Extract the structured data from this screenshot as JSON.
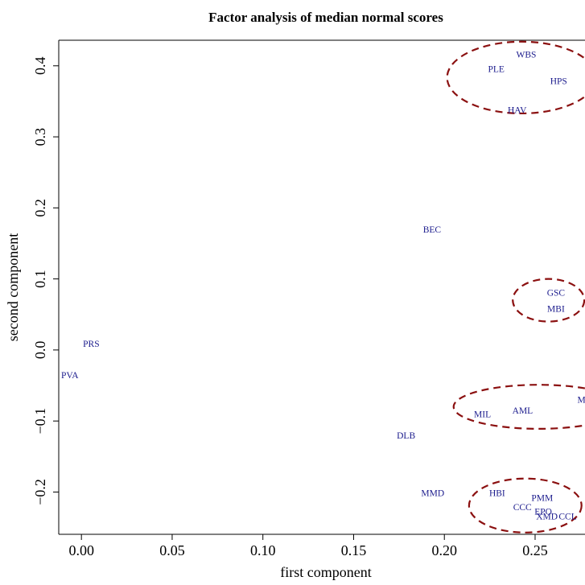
{
  "chart_data": {
    "type": "scatter",
    "title": "Factor analysis of median normal scores",
    "xlabel": "first component",
    "ylabel": "second component",
    "xlim": [
      -0.0125,
      0.2775
    ],
    "ylim": [
      -0.2595,
      0.436
    ],
    "xticks": [
      0.0,
      0.05,
      0.1,
      0.15,
      0.2,
      0.25
    ],
    "xtick_labels": [
      "0.00",
      "0.05",
      "0.10",
      "0.15",
      "0.20",
      "0.25"
    ],
    "yticks": [
      -0.2,
      -0.1,
      0.0,
      0.1,
      0.2,
      0.3,
      0.4
    ],
    "ytick_labels": [
      "−0.2",
      "−0.1",
      "0.0",
      "0.1",
      "0.2",
      "0.3",
      "0.4"
    ],
    "grid": false,
    "point_color": "#1a1a8c",
    "ellipse_color": "#8b1010",
    "points": [
      {
        "label": "WBS",
        "x": 0.2451,
        "y": 0.416
      },
      {
        "label": "PLE",
        "x": 0.2286,
        "y": 0.396
      },
      {
        "label": "HPS",
        "x": 0.263,
        "y": 0.379
      },
      {
        "label": "HAV",
        "x": 0.2401,
        "y": 0.338
      },
      {
        "label": "BEC",
        "x": 0.1932,
        "y": 0.17
      },
      {
        "label": "GSC",
        "x": 0.2615,
        "y": 0.081
      },
      {
        "label": "MBI",
        "x": 0.2615,
        "y": 0.058
      },
      {
        "label": "PRS",
        "x": 0.0054,
        "y": 0.009
      },
      {
        "label": "PVA",
        "x": -0.0064,
        "y": -0.035
      },
      {
        "label": "MDS",
        "x": 0.2788,
        "y": -0.07
      },
      {
        "label": "AML",
        "x": 0.2431,
        "y": -0.085
      },
      {
        "label": "MIL",
        "x": 0.221,
        "y": -0.09
      },
      {
        "label": "DLB",
        "x": 0.1789,
        "y": -0.12
      },
      {
        "label": "MMD",
        "x": 0.1936,
        "y": -0.201
      },
      {
        "label": "HBI",
        "x": 0.2291,
        "y": -0.201
      },
      {
        "label": "PMM",
        "x": 0.2539,
        "y": -0.208
      },
      {
        "label": "CCC",
        "x": 0.243,
        "y": -0.221
      },
      {
        "label": "EPO",
        "x": 0.2545,
        "y": -0.227
      },
      {
        "label": "XMD",
        "x": 0.2565,
        "y": -0.234
      },
      {
        "label": "CCL",
        "x": 0.268,
        "y": -0.234
      }
    ],
    "ellipses": [
      {
        "cx": 0.2426,
        "cy": 0.3835,
        "rx": 0.0411,
        "ry": 0.0505
      },
      {
        "cx": 0.2574,
        "cy": 0.07,
        "rx": 0.0197,
        "ry": 0.03
      },
      {
        "cx": 0.252,
        "cy": -0.08,
        "rx": 0.0469,
        "ry": 0.031
      },
      {
        "cx": 0.2446,
        "cy": -0.219,
        "rx": 0.031,
        "ry": 0.038
      }
    ]
  }
}
